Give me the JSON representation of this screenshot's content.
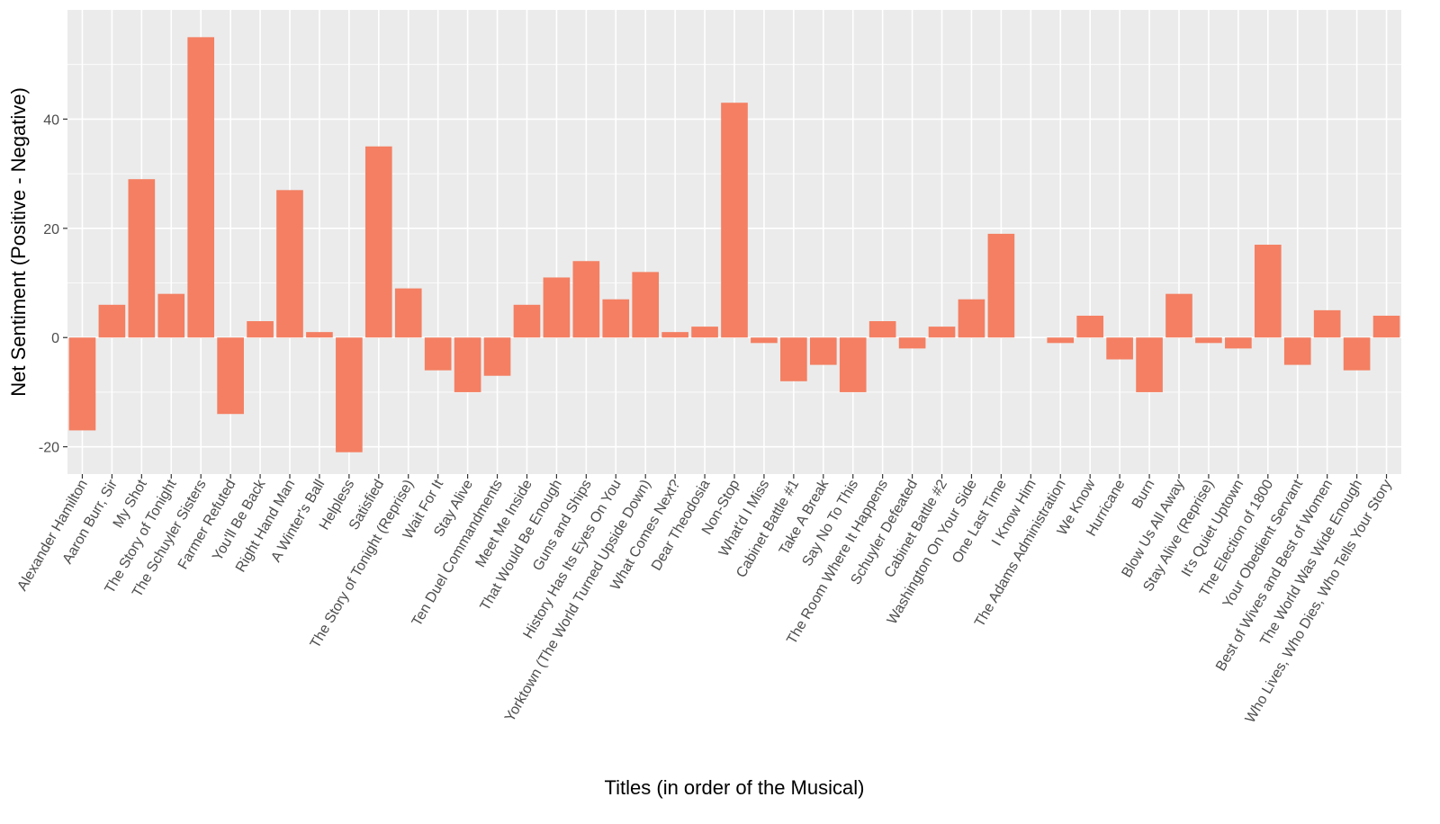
{
  "chart_data": {
    "type": "bar",
    "xlabel": "Titles (in order of the Musical)",
    "ylabel": "Net Sentiment (Positive - Negative)",
    "ylim": [
      -25,
      60
    ],
    "yticks": [
      -20,
      0,
      20,
      40
    ],
    "grid": true,
    "bar_color": "#F47F62",
    "panel_color": "#EBEBEB",
    "grid_color": "#FFFFFF",
    "categories": [
      "Alexander Hamilton",
      "Aaron Burr, Sir",
      "My Shot",
      "The Story of Tonight",
      "The Schuyler Sisters",
      "Farmer Refuted",
      "You'll Be Back",
      "Right Hand Man",
      "A Winter's Ball",
      "Helpless",
      "Satisfied",
      "The Story of Tonight (Reprise)",
      "Wait For It",
      "Stay Alive",
      "Ten Duel Commandments",
      "Meet Me Inside",
      "That Would Be Enough",
      "Guns and Ships",
      "History Has Its Eyes On You",
      "Yorktown (The World Turned Upside Down)",
      "What Comes Next?",
      "Dear Theodosia",
      "Non-Stop",
      "What'd I Miss",
      "Cabinet Battle #1",
      "Take A Break",
      "Say No To This",
      "The Room Where It Happens",
      "Schuyler Defeated",
      "Cabinet Battle #2",
      "Washington On Your Side",
      "One Last Time",
      "I Know Him",
      "The Adams Administration",
      "We Know",
      "Hurricane",
      "Burn",
      "Blow Us All Away",
      "Stay Alive (Reprise)",
      "It's Quiet Uptown",
      "The Election of 1800",
      "Your Obedient Servant",
      "Best of Wives and Best of Women",
      "The World Was Wide Enough",
      "Who Lives, Who Dies, Who Tells Your Story"
    ],
    "values": [
      -17,
      6,
      29,
      8,
      55,
      -14,
      3,
      27,
      1,
      -21,
      35,
      9,
      -6,
      -10,
      -7,
      6,
      11,
      14,
      7,
      12,
      1,
      2,
      43,
      -1,
      -8,
      -5,
      -10,
      3,
      -2,
      2,
      7,
      19,
      0,
      -1,
      4,
      -4,
      -10,
      8,
      -1,
      -2,
      17,
      -5,
      5,
      -6,
      4
    ]
  }
}
